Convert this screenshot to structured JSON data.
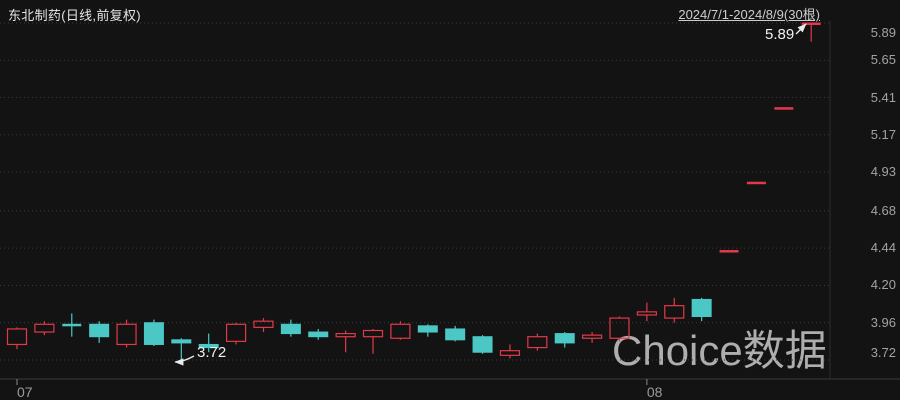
{
  "header": {
    "title": "东北制药(日线,前复权)",
    "range": "2024/7/1-2024/8/9(30根)"
  },
  "watermark": {
    "text": "Choice数据"
  },
  "annotations": {
    "high_label": "5.89",
    "low_label": "3.72"
  },
  "chart_data": {
    "type": "candlestick",
    "symbol": "东北制药",
    "period": "日线",
    "adjustment": "前复权",
    "bar_count": 30,
    "date_range": "2024/7/1-2024/8/9",
    "ylim": [
      3.72,
      5.89
    ],
    "y_ticks": [
      "5.89",
      "5.65",
      "5.41",
      "5.17",
      "4.93",
      "4.68",
      "4.44",
      "4.20",
      "3.96",
      "3.72"
    ],
    "x_ticks": [
      {
        "label": "07",
        "bar_index": 0
      },
      {
        "label": "08",
        "bar_index": 23
      }
    ],
    "grid": "dotted-horizontal",
    "legend_position": "none",
    "colors": {
      "up": "#e2394a",
      "down": "#4bc8c6",
      "grid": "#3b3b3b",
      "axis": "#2e2e2e",
      "tick": "#8a8a8a",
      "background": "#131313"
    },
    "candles": [
      {
        "o": 3.82,
        "h": 3.93,
        "l": 3.79,
        "c": 3.92
      },
      {
        "o": 3.9,
        "h": 3.97,
        "l": 3.88,
        "c": 3.95
      },
      {
        "o": 3.95,
        "h": 4.02,
        "l": 3.87,
        "c": 3.94
      },
      {
        "o": 3.95,
        "h": 3.97,
        "l": 3.83,
        "c": 3.87
      },
      {
        "o": 3.82,
        "h": 3.98,
        "l": 3.8,
        "c": 3.95
      },
      {
        "o": 3.96,
        "h": 3.98,
        "l": 3.81,
        "c": 3.82
      },
      {
        "o": 3.85,
        "h": 3.86,
        "l": 3.72,
        "c": 3.83
      },
      {
        "o": 3.82,
        "h": 3.89,
        "l": 3.77,
        "c": 3.8
      },
      {
        "o": 3.84,
        "h": 3.96,
        "l": 3.82,
        "c": 3.95
      },
      {
        "o": 3.93,
        "h": 3.99,
        "l": 3.9,
        "c": 3.97
      },
      {
        "o": 3.95,
        "h": 3.98,
        "l": 3.87,
        "c": 3.89
      },
      {
        "o": 3.9,
        "h": 3.92,
        "l": 3.85,
        "c": 3.87
      },
      {
        "o": 3.87,
        "h": 3.91,
        "l": 3.77,
        "c": 3.89
      },
      {
        "o": 3.87,
        "h": 3.92,
        "l": 3.76,
        "c": 3.91
      },
      {
        "o": 3.86,
        "h": 3.97,
        "l": 3.85,
        "c": 3.95
      },
      {
        "o": 3.94,
        "h": 3.95,
        "l": 3.87,
        "c": 3.9
      },
      {
        "o": 3.92,
        "h": 3.94,
        "l": 3.84,
        "c": 3.85
      },
      {
        "o": 3.87,
        "h": 3.88,
        "l": 3.76,
        "c": 3.77
      },
      {
        "o": 3.75,
        "h": 3.82,
        "l": 3.73,
        "c": 3.78
      },
      {
        "o": 3.8,
        "h": 3.89,
        "l": 3.78,
        "c": 3.87
      },
      {
        "o": 3.89,
        "h": 3.9,
        "l": 3.8,
        "c": 3.83
      },
      {
        "o": 3.86,
        "h": 3.9,
        "l": 3.83,
        "c": 3.88
      },
      {
        "o": 3.86,
        "h": 4.0,
        "l": 3.84,
        "c": 3.99
      },
      {
        "o": 4.01,
        "h": 4.09,
        "l": 3.97,
        "c": 4.03
      },
      {
        "o": 3.99,
        "h": 4.12,
        "l": 3.96,
        "c": 4.07
      },
      {
        "o": 4.11,
        "h": 4.12,
        "l": 3.97,
        "c": 4.0
      },
      {
        "o": 4.42,
        "h": 4.42,
        "l": 4.42,
        "c": 4.42
      },
      {
        "o": 4.86,
        "h": 4.86,
        "l": 4.86,
        "c": 4.86
      },
      {
        "o": 5.34,
        "h": 5.34,
        "l": 5.34,
        "c": 5.34
      },
      {
        "o": 5.88,
        "h": 5.89,
        "l": 5.77,
        "c": 5.89
      }
    ]
  }
}
